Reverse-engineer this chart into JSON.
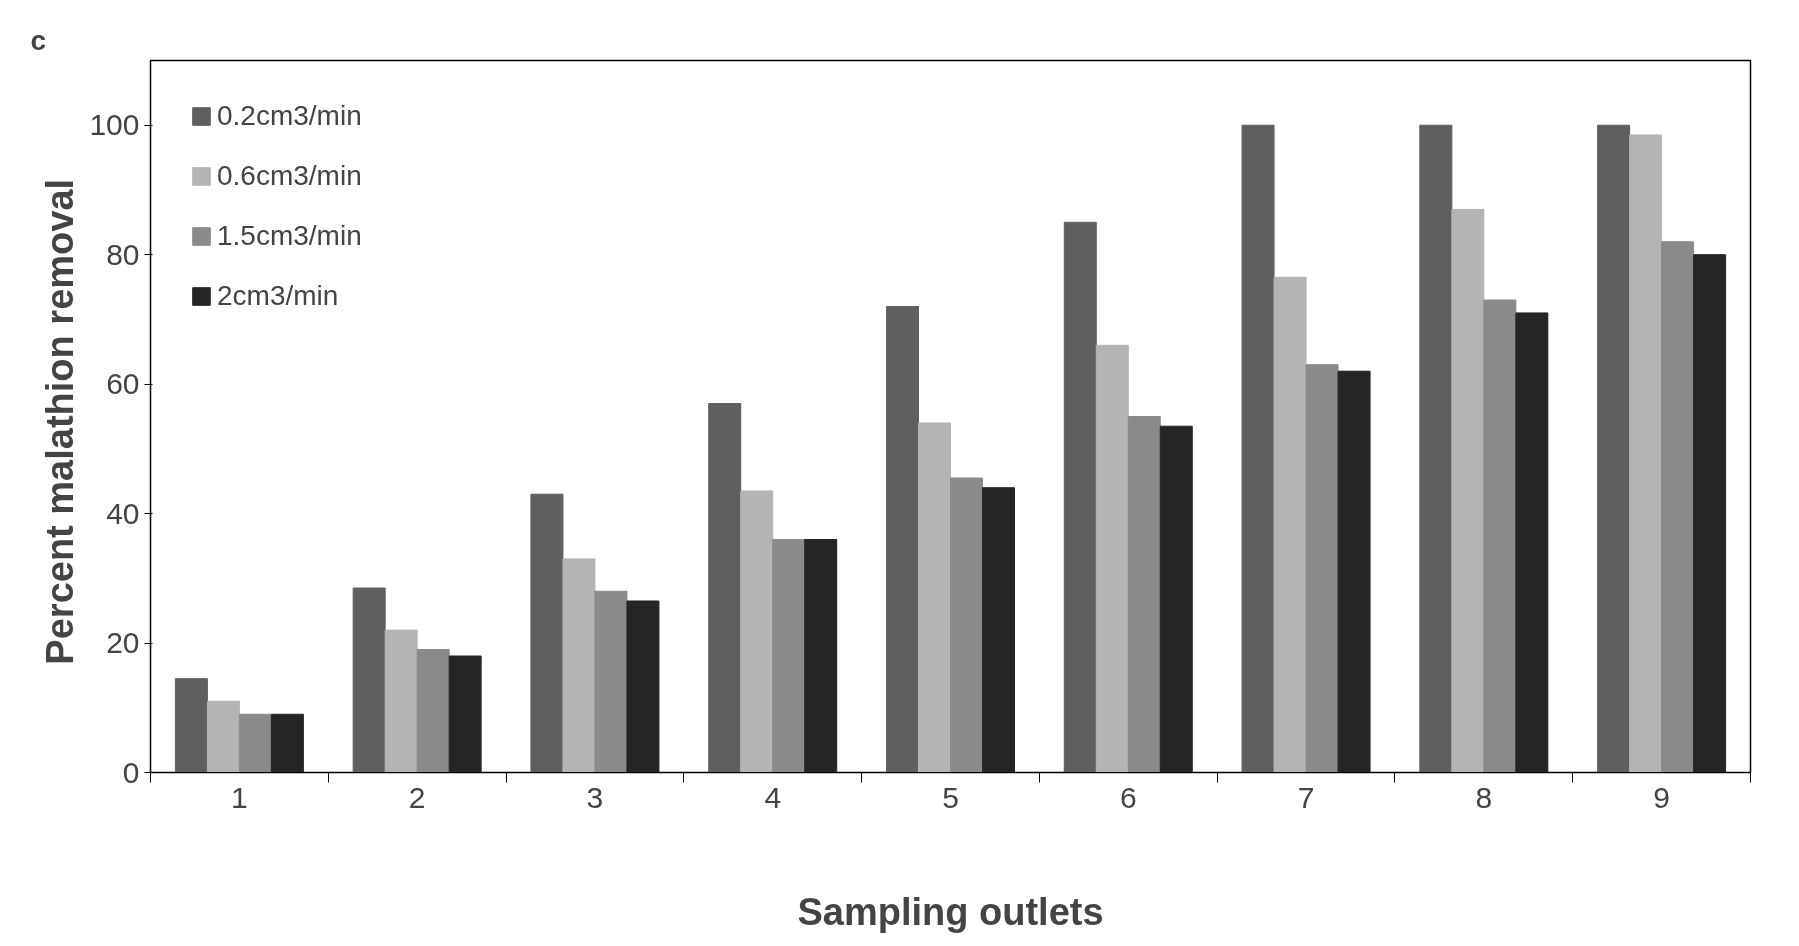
{
  "chart_data": {
    "type": "bar",
    "xlabel": "Sampling outlets",
    "ylabel": "Percent malathion  removal",
    "annotations": [
      "c"
    ],
    "categories": [
      "1",
      "2",
      "3",
      "4",
      "5",
      "6",
      "7",
      "8",
      "9"
    ],
    "series": [
      {
        "name": "0.2cm3/min",
        "color": "#5f5f5f",
        "values": [
          14.5,
          28.5,
          43,
          57,
          72,
          85,
          100,
          100,
          100
        ]
      },
      {
        "name": "0.6cm3/min",
        "color": "#b4b4b4",
        "values": [
          11,
          22,
          33,
          43.5,
          54,
          66,
          76.5,
          87,
          98.5
        ]
      },
      {
        "name": "1.5cm3/min",
        "color": "#8a8a8a",
        "values": [
          9,
          19,
          28,
          36,
          45.5,
          55,
          63,
          73,
          82
        ]
      },
      {
        "name": "2cm3/min",
        "color": "#252525",
        "values": [
          9,
          18,
          26.5,
          36,
          44,
          53.5,
          62,
          71,
          80
        ]
      }
    ],
    "ylim": [
      0,
      110
    ],
    "yticks": [
      0,
      20,
      40,
      60,
      80,
      100
    ],
    "grid": false,
    "legend": "top left"
  }
}
